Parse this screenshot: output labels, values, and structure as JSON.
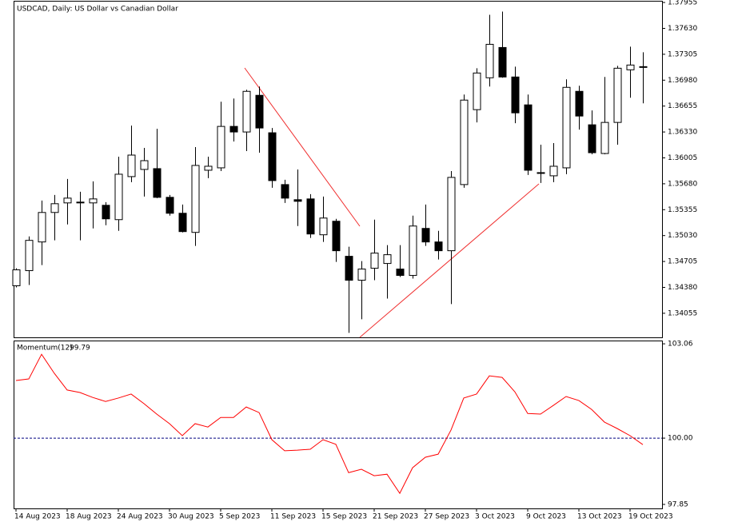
{
  "chart_data": [
    {
      "type": "candlestick",
      "title": "USDCAD, Daily:  US Dollar vs Canadian Dollar",
      "categories": [
        "14 Aug 2023",
        null,
        null,
        null,
        "18 Aug 2023",
        null,
        null,
        null,
        "24 Aug 2023",
        null,
        null,
        null,
        "30 Aug 2023",
        null,
        null,
        null,
        "5 Sep 2023",
        null,
        null,
        null,
        "11 Sep 2023",
        null,
        null,
        null,
        "15 Sep 2023",
        null,
        null,
        null,
        "21 Sep 2023",
        null,
        null,
        null,
        "27 Sep 2023",
        null,
        null,
        null,
        "3 Oct 2023",
        null,
        null,
        null,
        "9 Oct 2023",
        null,
        null,
        null,
        "13 Oct 2023",
        null,
        null,
        null,
        "19 Oct 2023",
        null
      ],
      "open": [
        1.344,
        1.3459,
        1.3495,
        1.3532,
        1.3544,
        1.3545,
        1.3544,
        1.3541,
        1.3523,
        1.3577,
        1.3586,
        1.3587,
        1.3551,
        1.3531,
        1.3507,
        1.3585,
        1.3588,
        1.364,
        1.3633,
        1.3679,
        1.3632,
        1.3567,
        1.3548,
        1.3549,
        1.3504,
        1.3521,
        1.3477,
        1.3447,
        1.3462,
        1.3468,
        1.3461,
        1.3453,
        1.3512,
        1.3495,
        1.3484,
        1.3567,
        1.3661,
        1.3701,
        1.3739,
        1.3702,
        1.3667,
        1.3582,
        1.3578,
        1.3588,
        1.3684,
        1.3642,
        1.3606,
        1.3645,
        1.3711,
        1.3715
      ],
      "high": [
        1.3462,
        1.3502,
        1.3547,
        1.3554,
        1.3574,
        1.3558,
        1.3571,
        1.3545,
        1.3602,
        1.3641,
        1.3613,
        1.3637,
        1.3554,
        1.3542,
        1.3614,
        1.3602,
        1.3671,
        1.3675,
        1.3686,
        1.369,
        1.3638,
        1.3573,
        1.3586,
        1.3555,
        1.3552,
        1.3524,
        1.3489,
        1.3471,
        1.3523,
        1.3491,
        1.3491,
        1.3528,
        1.3542,
        1.3509,
        1.3584,
        1.368,
        1.3713,
        1.378,
        1.3784,
        1.3715,
        1.368,
        1.3617,
        1.3619,
        1.3699,
        1.3691,
        1.366,
        1.3702,
        1.3716,
        1.374,
        1.3733
      ],
      "low": [
        1.3438,
        1.3441,
        1.3466,
        1.3497,
        1.3517,
        1.3497,
        1.3512,
        1.3516,
        1.3509,
        1.357,
        1.3552,
        1.355,
        1.3528,
        1.3507,
        1.349,
        1.3575,
        1.3584,
        1.3621,
        1.3609,
        1.3607,
        1.3563,
        1.3544,
        1.3515,
        1.35,
        1.3495,
        1.347,
        1.3381,
        1.3398,
        1.3447,
        1.3424,
        1.3451,
        1.3449,
        1.349,
        1.3473,
        1.3417,
        1.3563,
        1.3645,
        1.369,
        1.3701,
        1.3644,
        1.3579,
        1.3569,
        1.357,
        1.358,
        1.3636,
        1.3605,
        1.3605,
        1.3617,
        1.3676,
        1.3669
      ],
      "close": [
        1.346,
        1.3497,
        1.3532,
        1.3543,
        1.355,
        1.3544,
        1.3549,
        1.3524,
        1.358,
        1.3604,
        1.3597,
        1.3551,
        1.3531,
        1.3508,
        1.3591,
        1.359,
        1.364,
        1.3633,
        1.3684,
        1.3638,
        1.3572,
        1.355,
        1.3546,
        1.3505,
        1.3525,
        1.3484,
        1.3447,
        1.3461,
        1.3481,
        1.3479,
        1.3453,
        1.3515,
        1.3495,
        1.3484,
        1.3576,
        1.3673,
        1.3707,
        1.3743,
        1.3702,
        1.3657,
        1.3585,
        1.3581,
        1.359,
        1.3689,
        1.3653,
        1.3607,
        1.3645,
        1.3713,
        1.3717,
        1.3714
      ],
      "up_color": "#ffffff",
      "down_color": "#000000",
      "ylim": [
        1.33753,
        1.37966
      ],
      "yticks": [
        1.37955,
        {
          "value": 1.3763,
          "label": "1.37630"
        },
        1.37305,
        {
          "value": 1.3698,
          "label": "1.36980"
        },
        1.36655,
        {
          "value": 1.3633,
          "label": "1.36330"
        },
        1.36005,
        {
          "value": 1.3568,
          "label": "1.35680"
        },
        1.35355,
        {
          "value": 1.3503,
          "label": "1.35030"
        },
        1.34705,
        {
          "value": 1.3438,
          "label": "1.34380"
        },
        1.34055
      ]
    },
    {
      "type": "line",
      "title": "Momentum(12)",
      "current_value": 99.79,
      "color": "#ff0000",
      "values": [
        101.87,
        101.92,
        102.72,
        102.1,
        101.56,
        101.48,
        101.32,
        101.19,
        101.3,
        101.43,
        101.12,
        100.78,
        100.47,
        100.08,
        100.47,
        100.36,
        100.67,
        100.67,
        101.01,
        100.83,
        99.95,
        99.59,
        99.61,
        99.64,
        99.95,
        99.8,
        98.88,
        98.99,
        98.78,
        98.83,
        98.21,
        99.04,
        99.38,
        99.48,
        100.26,
        101.3,
        101.43,
        102.02,
        101.97,
        101.5,
        100.8,
        100.78,
        101.06,
        101.35,
        101.22,
        100.93,
        100.52,
        100.31,
        100.08,
        99.79
      ],
      "levels": [
        100
      ],
      "ylim": [
        97.72,
        103.14
      ],
      "yticks": [
        103.06,
        {
          "value": 100,
          "label": "100.00"
        },
        97.85
      ]
    }
  ]
}
